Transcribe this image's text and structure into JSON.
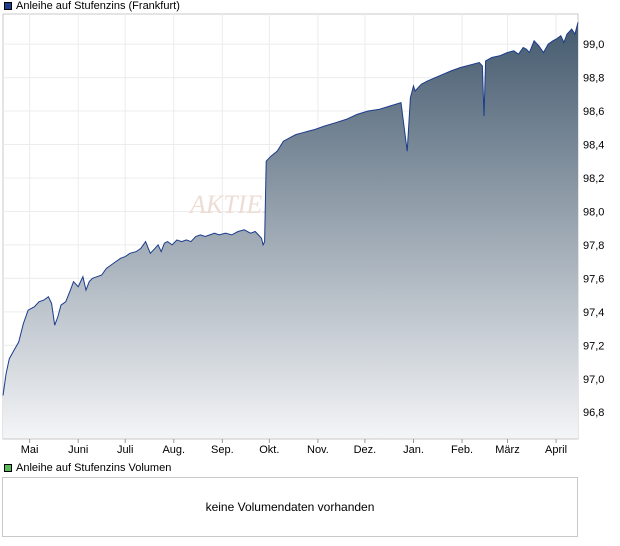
{
  "legend_price": {
    "label": "Anleihe auf Stufenzins (Frankfurt)",
    "color": "#1c3c8c"
  },
  "legend_volume": {
    "label": "Anleihe auf Stufenzins Volumen",
    "color": "#5cb85c"
  },
  "watermark": "AKTIEN",
  "volume_message": "keine Volumendaten vorhanden",
  "chart_data": {
    "type": "area",
    "title": "Anleihe auf Stufenzins (Frankfurt)",
    "xlabel": "",
    "ylabel": "",
    "ylim": [
      96.64,
      99.18
    ],
    "yticks": [
      96.8,
      97.0,
      97.2,
      97.4,
      97.6,
      97.8,
      98.0,
      98.2,
      98.4,
      98.6,
      98.8,
      99.0
    ],
    "ytick_labels": [
      "96,8",
      "97,0",
      "97,2",
      "97,4",
      "97,6",
      "97,8",
      "98,0",
      "98,2",
      "98,4",
      "98,6",
      "98,8",
      "99,0"
    ],
    "xlim": [
      "2023-04-14",
      "2024-04-15"
    ],
    "xticks": [
      "2023-05-01",
      "2023-06-01",
      "2023-07-01",
      "2023-08-01",
      "2023-09-01",
      "2023-10-01",
      "2023-11-01",
      "2023-12-01",
      "2024-01-01",
      "2024-02-01",
      "2024-03-01",
      "2024-04-01"
    ],
    "xtick_labels": [
      "Mai",
      "Juni",
      "Juli",
      "Aug.",
      "Sep.",
      "Okt.",
      "Nov.",
      "Dez.",
      "Jan.",
      "Feb.",
      "März",
      "April"
    ],
    "grid": true,
    "legend": "top-left",
    "line_color": "#1c3c8c",
    "fill_top_color": "#445a6e",
    "fill_bottom_color": "#f4f5f7",
    "series": [
      {
        "name": "Anleihe auf Stufenzins (Frankfurt)",
        "x": [
          "2023-04-14",
          "2023-04-16",
          "2023-04-18",
          "2023-04-21",
          "2023-04-24",
          "2023-04-27",
          "2023-04-30",
          "2023-05-04",
          "2023-05-07",
          "2023-05-10",
          "2023-05-13",
          "2023-05-15",
          "2023-05-17",
          "2023-05-19",
          "2023-05-21",
          "2023-05-24",
          "2023-05-27",
          "2023-05-29",
          "2023-06-01",
          "2023-06-04",
          "2023-06-06",
          "2023-06-08",
          "2023-06-10",
          "2023-06-13",
          "2023-06-16",
          "2023-06-19",
          "2023-06-22",
          "2023-06-25",
          "2023-06-28",
          "2023-07-01",
          "2023-07-04",
          "2023-07-08",
          "2023-07-11",
          "2023-07-14",
          "2023-07-17",
          "2023-07-20",
          "2023-07-22",
          "2023-07-24",
          "2023-07-26",
          "2023-07-28",
          "2023-07-31",
          "2023-08-03",
          "2023-08-06",
          "2023-08-09",
          "2023-08-12",
          "2023-08-15",
          "2023-08-18",
          "2023-08-21",
          "2023-08-24",
          "2023-08-27",
          "2023-08-30",
          "2023-09-03",
          "2023-09-07",
          "2023-09-11",
          "2023-09-15",
          "2023-09-19",
          "2023-09-22",
          "2023-09-24",
          "2023-09-26",
          "2023-09-27",
          "2023-09-28",
          "2023-09-29",
          "2023-10-02",
          "2023-10-06",
          "2023-10-10",
          "2023-10-14",
          "2023-10-18",
          "2023-10-22",
          "2023-10-26",
          "2023-10-30",
          "2023-11-05",
          "2023-11-12",
          "2023-11-19",
          "2023-11-26",
          "2023-12-03",
          "2023-12-10",
          "2023-12-17",
          "2023-12-24",
          "2023-12-28",
          "2023-12-30",
          "2024-01-01",
          "2024-01-02",
          "2024-01-03",
          "2024-01-06",
          "2024-01-10",
          "2024-01-15",
          "2024-01-20",
          "2024-01-25",
          "2024-01-31",
          "2024-02-04",
          "2024-02-08",
          "2024-02-12",
          "2024-02-14",
          "2024-02-15",
          "2024-02-16",
          "2024-02-20",
          "2024-02-25",
          "2024-03-01",
          "2024-03-05",
          "2024-03-08",
          "2024-03-11",
          "2024-03-13",
          "2024-03-15",
          "2024-03-18",
          "2024-03-21",
          "2024-03-24",
          "2024-03-27",
          "2024-03-30",
          "2024-04-01",
          "2024-04-04",
          "2024-04-06",
          "2024-04-08",
          "2024-04-11",
          "2024-04-13",
          "2024-04-15"
        ],
        "values": [
          96.9,
          97.03,
          97.12,
          97.17,
          97.22,
          97.33,
          97.41,
          97.43,
          97.46,
          97.47,
          97.49,
          97.45,
          97.32,
          97.37,
          97.44,
          97.46,
          97.53,
          97.58,
          97.55,
          97.61,
          97.53,
          97.58,
          97.6,
          97.61,
          97.62,
          97.66,
          97.68,
          97.7,
          97.72,
          97.73,
          97.75,
          97.76,
          97.78,
          97.82,
          97.75,
          97.78,
          97.8,
          97.76,
          97.81,
          97.82,
          97.8,
          97.83,
          97.82,
          97.83,
          97.82,
          97.85,
          97.86,
          97.85,
          97.86,
          97.87,
          97.86,
          97.87,
          97.86,
          97.88,
          97.89,
          97.87,
          97.88,
          97.86,
          97.84,
          97.8,
          97.82,
          98.3,
          98.33,
          98.36,
          98.42,
          98.44,
          98.46,
          98.47,
          98.48,
          98.49,
          98.51,
          98.53,
          98.55,
          98.58,
          98.6,
          98.61,
          98.63,
          98.65,
          98.36,
          98.68,
          98.75,
          98.72,
          98.73,
          98.76,
          98.78,
          98.8,
          98.82,
          98.84,
          98.86,
          98.87,
          98.88,
          98.89,
          98.87,
          98.57,
          98.9,
          98.92,
          98.93,
          98.95,
          98.96,
          98.94,
          98.98,
          98.97,
          98.95,
          99.02,
          98.99,
          98.95,
          99.0,
          99.02,
          99.03,
          99.05,
          99.01,
          99.06,
          99.09,
          99.06,
          99.13
        ]
      }
    ]
  }
}
